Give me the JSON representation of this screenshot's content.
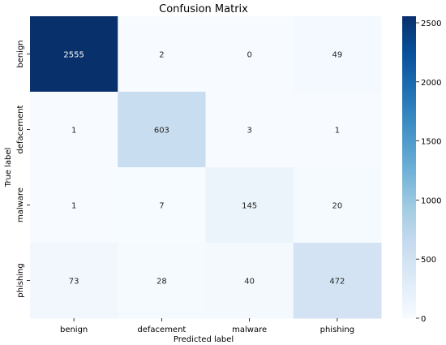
{
  "chart_data": {
    "type": "heatmap",
    "title": "Confusion Matrix",
    "xlabel": "Predicted label",
    "ylabel": "True label",
    "x_categories": [
      "benign",
      "defacement",
      "malware",
      "phishing"
    ],
    "y_categories": [
      "benign",
      "defacement",
      "malware",
      "phishing"
    ],
    "values": [
      [
        2555,
        2,
        0,
        49
      ],
      [
        1,
        603,
        3,
        1
      ],
      [
        1,
        7,
        145,
        20
      ],
      [
        73,
        28,
        40,
        472
      ]
    ],
    "colorbar": {
      "min": 0,
      "max": 2555,
      "ticks": [
        0,
        500,
        1000,
        1500,
        2000,
        2500
      ],
      "colormap": "Blues",
      "low_color": "#f7fbff",
      "high_color": "#08306b"
    }
  }
}
